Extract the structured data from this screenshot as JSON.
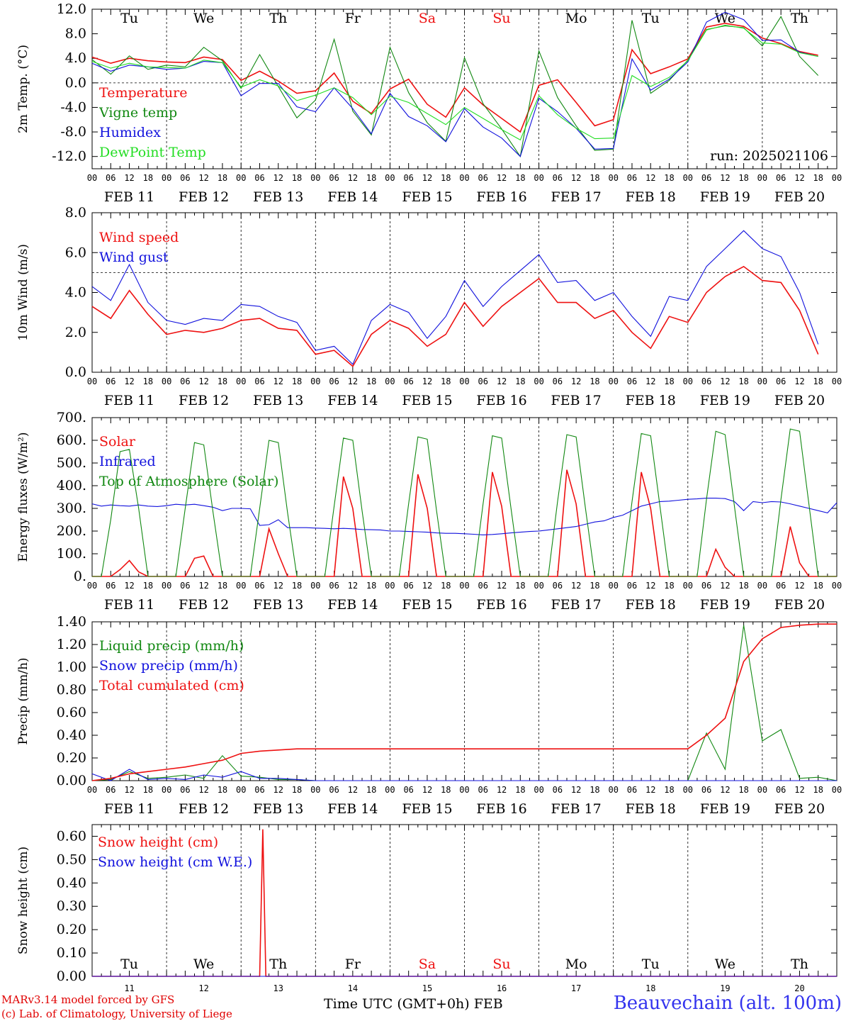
{
  "colors": {
    "red": "#ee1111",
    "green": "#118811",
    "blue": "#1111dd",
    "lightgreen": "#22dd22"
  },
  "x_hour_ticks": [
    "00",
    "06",
    "12",
    "18"
  ],
  "date_labels": [
    "FEB 11",
    "FEB 12",
    "FEB 13",
    "FEB 14",
    "FEB 15",
    "FEB 16",
    "FEB 17",
    "FEB 18",
    "FEB 19",
    "FEB 20"
  ],
  "weekdays": [
    {
      "label": "Tu",
      "weekend": false
    },
    {
      "label": "We",
      "weekend": false
    },
    {
      "label": "Th",
      "weekend": false
    },
    {
      "label": "Fr",
      "weekend": false
    },
    {
      "label": "Sa",
      "weekend": true
    },
    {
      "label": "Su",
      "weekend": true
    },
    {
      "label": "Mo",
      "weekend": false
    },
    {
      "label": "Tu",
      "weekend": false
    },
    {
      "label": "We",
      "weekend": false
    },
    {
      "label": "Th",
      "weekend": false
    }
  ],
  "day_numbers": [
    "11",
    "12",
    "13",
    "14",
    "15",
    "16",
    "17",
    "18",
    "19",
    "20"
  ],
  "footer": {
    "credit1": "MARv3.14 model forced by GFS",
    "credit2": "(c) Lab. of Climatology, University of Liege",
    "xaxis_title": "Time UTC (GMT+0h) FEB",
    "station": "Beauvechain (alt. 100m)"
  },
  "chart_data": [
    {
      "type": "line",
      "ylabel": "2m Temp. (°C)",
      "yticks": [
        "12.0",
        "8.0",
        "4.0",
        "0.0",
        "-4.0",
        "-8.0",
        "-12.0"
      ],
      "ylim": [
        -14,
        12
      ],
      "ref_line": 0,
      "run_label": "run: 2025021106",
      "x_hours": [
        0,
        6,
        12,
        18,
        24,
        30,
        36,
        42,
        48,
        54,
        60,
        66,
        72,
        78,
        84,
        90,
        96,
        102,
        108,
        114,
        120,
        126,
        132,
        138,
        144,
        150,
        156,
        162,
        168,
        174,
        180,
        186,
        192,
        198,
        204,
        210,
        216,
        222,
        228,
        234
      ],
      "series": [
        {
          "name": "Temperature",
          "color": "red",
          "values": [
            4.2,
            3.2,
            4.0,
            3.6,
            3.4,
            3.3,
            4.2,
            3.8,
            0.4,
            1.9,
            0.3,
            -1.7,
            -1.3,
            1.6,
            -3.0,
            -5.0,
            -1.0,
            0.6,
            -3.5,
            -5.6,
            -0.8,
            -3.6,
            -5.8,
            -8.0,
            -0.4,
            0.5,
            -3.2,
            -7.0,
            -6.0,
            5.4,
            1.5,
            2.6,
            3.9,
            9.1,
            9.7,
            9.2,
            7.3,
            6.4,
            5.1,
            4.5
          ]
        },
        {
          "name": "Vigne temp",
          "color": "green",
          "values": [
            3.8,
            1.4,
            4.4,
            2.2,
            2.9,
            2.6,
            5.8,
            3.6,
            -0.9,
            4.6,
            -0.6,
            -5.7,
            -2.8,
            7.1,
            -4.6,
            -8.5,
            5.8,
            -1.6,
            -6.5,
            -9.5,
            4.1,
            -3.4,
            -7.5,
            -12.0,
            5.2,
            -2.4,
            -7.0,
            -11.0,
            -10.8,
            10.2,
            -1.7,
            0.4,
            3.7,
            8.7,
            9.3,
            9.0,
            6.0,
            10.8,
            4.3,
            1.2
          ]
        },
        {
          "name": "Humidex",
          "color": "blue",
          "values": [
            3.2,
            1.9,
            2.9,
            2.6,
            2.2,
            2.4,
            3.5,
            3.3,
            -2.1,
            -0.1,
            -0.1,
            -3.9,
            -4.7,
            -0.8,
            -4.2,
            -8.3,
            -1.7,
            -5.5,
            -7.0,
            -9.6,
            -4.2,
            -7.2,
            -9.0,
            -12.0,
            -2.5,
            -4.7,
            -7.4,
            -10.8,
            -10.7,
            3.9,
            -1.2,
            0.6,
            3.4,
            9.9,
            11.5,
            10.3,
            6.9,
            7.0,
            5.0,
            4.3
          ]
        },
        {
          "name": "DewPoint Temp",
          "color": "lightgreen",
          "values": [
            3.5,
            2.4,
            3.2,
            2.6,
            2.5,
            2.4,
            3.7,
            3.3,
            -0.7,
            0.5,
            -0.5,
            -2.9,
            -2.0,
            -0.8,
            -2.4,
            -5.2,
            -2.2,
            -3.2,
            -5.0,
            -6.8,
            -4.0,
            -5.8,
            -7.6,
            -9.3,
            -2.1,
            -5.2,
            -7.4,
            -9.1,
            -9.0,
            1.2,
            -0.6,
            0.9,
            3.6,
            8.6,
            9.4,
            8.9,
            6.5,
            6.3,
            4.9,
            4.3
          ]
        }
      ]
    },
    {
      "type": "line",
      "ylabel": "10m Wind (m/s)",
      "yticks": [
        "8.0",
        "6.0",
        "4.0",
        "2.0",
        "0.0"
      ],
      "ylim": [
        0,
        8
      ],
      "ref_line": 5,
      "x_hours": [
        0,
        6,
        12,
        18,
        24,
        30,
        36,
        42,
        48,
        54,
        60,
        66,
        72,
        78,
        84,
        90,
        96,
        102,
        108,
        114,
        120,
        126,
        132,
        138,
        144,
        150,
        156,
        162,
        168,
        174,
        180,
        186,
        192,
        198,
        204,
        210,
        216,
        222,
        228,
        234
      ],
      "series": [
        {
          "name": "Wind speed",
          "color": "red",
          "values": [
            3.3,
            2.7,
            4.1,
            2.9,
            1.9,
            2.1,
            2.0,
            2.2,
            2.6,
            2.7,
            2.2,
            2.1,
            0.9,
            1.1,
            0.3,
            1.9,
            2.6,
            2.2,
            1.3,
            1.9,
            3.5,
            2.3,
            3.3,
            4.0,
            4.7,
            3.5,
            3.5,
            2.7,
            3.1,
            2.0,
            1.2,
            2.8,
            2.5,
            4.0,
            4.8,
            5.3,
            4.6,
            4.5,
            3.1,
            0.9
          ]
        },
        {
          "name": "Wind gust",
          "color": "blue",
          "values": [
            4.3,
            3.6,
            5.4,
            3.5,
            2.6,
            2.4,
            2.7,
            2.6,
            3.4,
            3.3,
            2.8,
            2.5,
            1.1,
            1.3,
            0.4,
            2.6,
            3.4,
            3.0,
            1.7,
            2.8,
            4.6,
            3.3,
            4.3,
            5.1,
            5.9,
            4.5,
            4.6,
            3.6,
            4.0,
            2.8,
            1.8,
            3.8,
            3.6,
            5.3,
            6.2,
            7.1,
            6.2,
            5.8,
            4.0,
            1.4
          ]
        }
      ]
    },
    {
      "type": "line",
      "ylabel": "Energy fluxes (W/m²)",
      "yticks": [
        "700.",
        "600.",
        "500.",
        "400.",
        "300.",
        "200.",
        "100.",
        "0."
      ],
      "ylim": [
        0,
        700
      ],
      "x_hours": [
        0,
        3,
        6,
        9,
        12,
        15,
        18,
        21,
        24,
        27,
        30,
        33,
        36,
        39,
        42,
        45,
        48,
        51,
        54,
        57,
        60,
        63,
        66,
        69,
        72,
        75,
        78,
        81,
        84,
        87,
        90,
        93,
        96,
        99,
        102,
        105,
        108,
        111,
        114,
        117,
        120,
        123,
        126,
        129,
        132,
        135,
        138,
        141,
        144,
        147,
        150,
        153,
        156,
        159,
        162,
        165,
        168,
        171,
        174,
        177,
        180,
        183,
        186,
        189,
        192,
        195,
        198,
        201,
        204,
        207,
        210,
        213,
        216,
        219,
        222,
        225,
        228,
        231,
        234,
        237,
        240
      ],
      "series": [
        {
          "name": "Solar",
          "color": "red",
          "values": [
            0,
            0,
            0,
            30,
            70,
            20,
            0,
            0,
            0,
            0,
            0,
            80,
            90,
            0,
            0,
            0,
            0,
            0,
            0,
            210,
            100,
            0,
            0,
            0,
            0,
            0,
            0,
            440,
            300,
            0,
            0,
            0,
            0,
            0,
            0,
            450,
            300,
            0,
            0,
            0,
            0,
            0,
            0,
            460,
            310,
            0,
            0,
            0,
            0,
            0,
            0,
            470,
            320,
            0,
            0,
            0,
            0,
            0,
            0,
            460,
            300,
            0,
            0,
            0,
            0,
            0,
            0,
            120,
            40,
            0,
            0,
            0,
            0,
            0,
            0,
            220,
            60,
            0,
            0,
            0,
            0
          ]
        },
        {
          "name": "Infrared",
          "color": "blue",
          "values": [
            320,
            310,
            315,
            312,
            310,
            315,
            310,
            308,
            312,
            318,
            315,
            318,
            312,
            305,
            290,
            300,
            300,
            298,
            225,
            228,
            250,
            215,
            215,
            215,
            213,
            212,
            210,
            212,
            210,
            207,
            206,
            205,
            200,
            200,
            198,
            197,
            195,
            192,
            190,
            190,
            188,
            186,
            183,
            185,
            188,
            192,
            195,
            198,
            200,
            205,
            210,
            215,
            220,
            230,
            240,
            245,
            260,
            270,
            290,
            310,
            320,
            330,
            332,
            336,
            340,
            342,
            345,
            345,
            343,
            330,
            290,
            330,
            325,
            330,
            328,
            320,
            310,
            300,
            290,
            280,
            325
          ]
        },
        {
          "name": "Top of Atmosphere (Solar)",
          "color": "green",
          "values": [
            0,
            0,
            250,
            550,
            560,
            300,
            0,
            0,
            0,
            0,
            300,
            590,
            580,
            280,
            0,
            0,
            0,
            0,
            300,
            600,
            590,
            280,
            0,
            0,
            0,
            0,
            310,
            610,
            600,
            290,
            0,
            0,
            0,
            0,
            320,
            615,
            605,
            290,
            0,
            0,
            0,
            0,
            320,
            620,
            610,
            300,
            0,
            0,
            0,
            0,
            330,
            625,
            615,
            300,
            0,
            0,
            0,
            0,
            330,
            630,
            620,
            310,
            0,
            0,
            0,
            0,
            340,
            640,
            625,
            310,
            0,
            0,
            0,
            0,
            340,
            650,
            640,
            320,
            0,
            0,
            0
          ]
        }
      ]
    },
    {
      "type": "line",
      "ylabel": "Precip (mm/h)",
      "yticks": [
        "1.40",
        "1.20",
        "1.00",
        "0.80",
        "0.60",
        "0.40",
        "0.20",
        "0.00"
      ],
      "ylim": [
        0,
        1.4
      ],
      "x_hours": [
        0,
        6,
        12,
        18,
        24,
        30,
        36,
        42,
        48,
        54,
        60,
        66,
        72,
        78,
        84,
        90,
        96,
        102,
        108,
        114,
        120,
        126,
        132,
        138,
        144,
        150,
        156,
        162,
        168,
        174,
        180,
        186,
        192,
        198,
        204,
        210,
        216,
        222,
        228,
        234,
        240
      ],
      "series": [
        {
          "name": "Liquid precip (mm/h)",
          "color": "green",
          "values": [
            0,
            0.01,
            0.08,
            0.02,
            0.03,
            0.05,
            0.02,
            0.22,
            0.04,
            0.03,
            0.01,
            0.01,
            0.0,
            0.0,
            0.0,
            0.0,
            0.0,
            0.0,
            0.0,
            0.0,
            0.0,
            0.0,
            0.0,
            0.0,
            0.0,
            0.0,
            0.0,
            0.0,
            0.0,
            0.0,
            0.0,
            0.0,
            0.0,
            0.42,
            0.1,
            1.37,
            0.35,
            0.45,
            0.02,
            0.03,
            0.0
          ]
        },
        {
          "name": "Snow precip (mm/h)",
          "color": "blue",
          "values": [
            0.06,
            0.0,
            0.1,
            0.01,
            0.02,
            0.01,
            0.05,
            0.03,
            0.08,
            0.02,
            0.02,
            0.01,
            0.0,
            0.0,
            0.0,
            0.0,
            0.0,
            0.0,
            0.0,
            0.0,
            0.0,
            0.0,
            0.0,
            0.0,
            0.0,
            0.0,
            0.0,
            0.0,
            0.0,
            0.0,
            0.0,
            0.0,
            0.0,
            0.0,
            0.0,
            0.0,
            0.0,
            0.0,
            0.0,
            0.0,
            0.0
          ]
        },
        {
          "name": "Total cumulated (cm)",
          "color": "red",
          "values": [
            0,
            0.02,
            0.06,
            0.08,
            0.1,
            0.12,
            0.15,
            0.18,
            0.24,
            0.26,
            0.27,
            0.28,
            0.28,
            0.28,
            0.28,
            0.28,
            0.28,
            0.28,
            0.28,
            0.28,
            0.28,
            0.28,
            0.28,
            0.28,
            0.28,
            0.28,
            0.28,
            0.28,
            0.28,
            0.28,
            0.28,
            0.28,
            0.28,
            0.4,
            0.55,
            1.05,
            1.25,
            1.35,
            1.37,
            1.38,
            1.38
          ]
        }
      ]
    },
    {
      "type": "line",
      "ylabel": "Snow height (cm)",
      "yticks": [
        "0.60",
        "0.50",
        "0.40",
        "0.30",
        "0.20",
        "0.10",
        "0.00"
      ],
      "ylim": [
        0,
        0.65
      ],
      "x_hours": [
        0,
        54,
        55,
        56,
        57,
        240
      ],
      "series": [
        {
          "name": "Snow height (cm)",
          "color": "red",
          "values": [
            0,
            0,
            0.63,
            0,
            0,
            0
          ]
        },
        {
          "name": "Snow height (cm W.E.)",
          "color": "blue",
          "values": [
            0,
            0,
            0,
            0,
            0,
            0
          ]
        }
      ]
    }
  ]
}
